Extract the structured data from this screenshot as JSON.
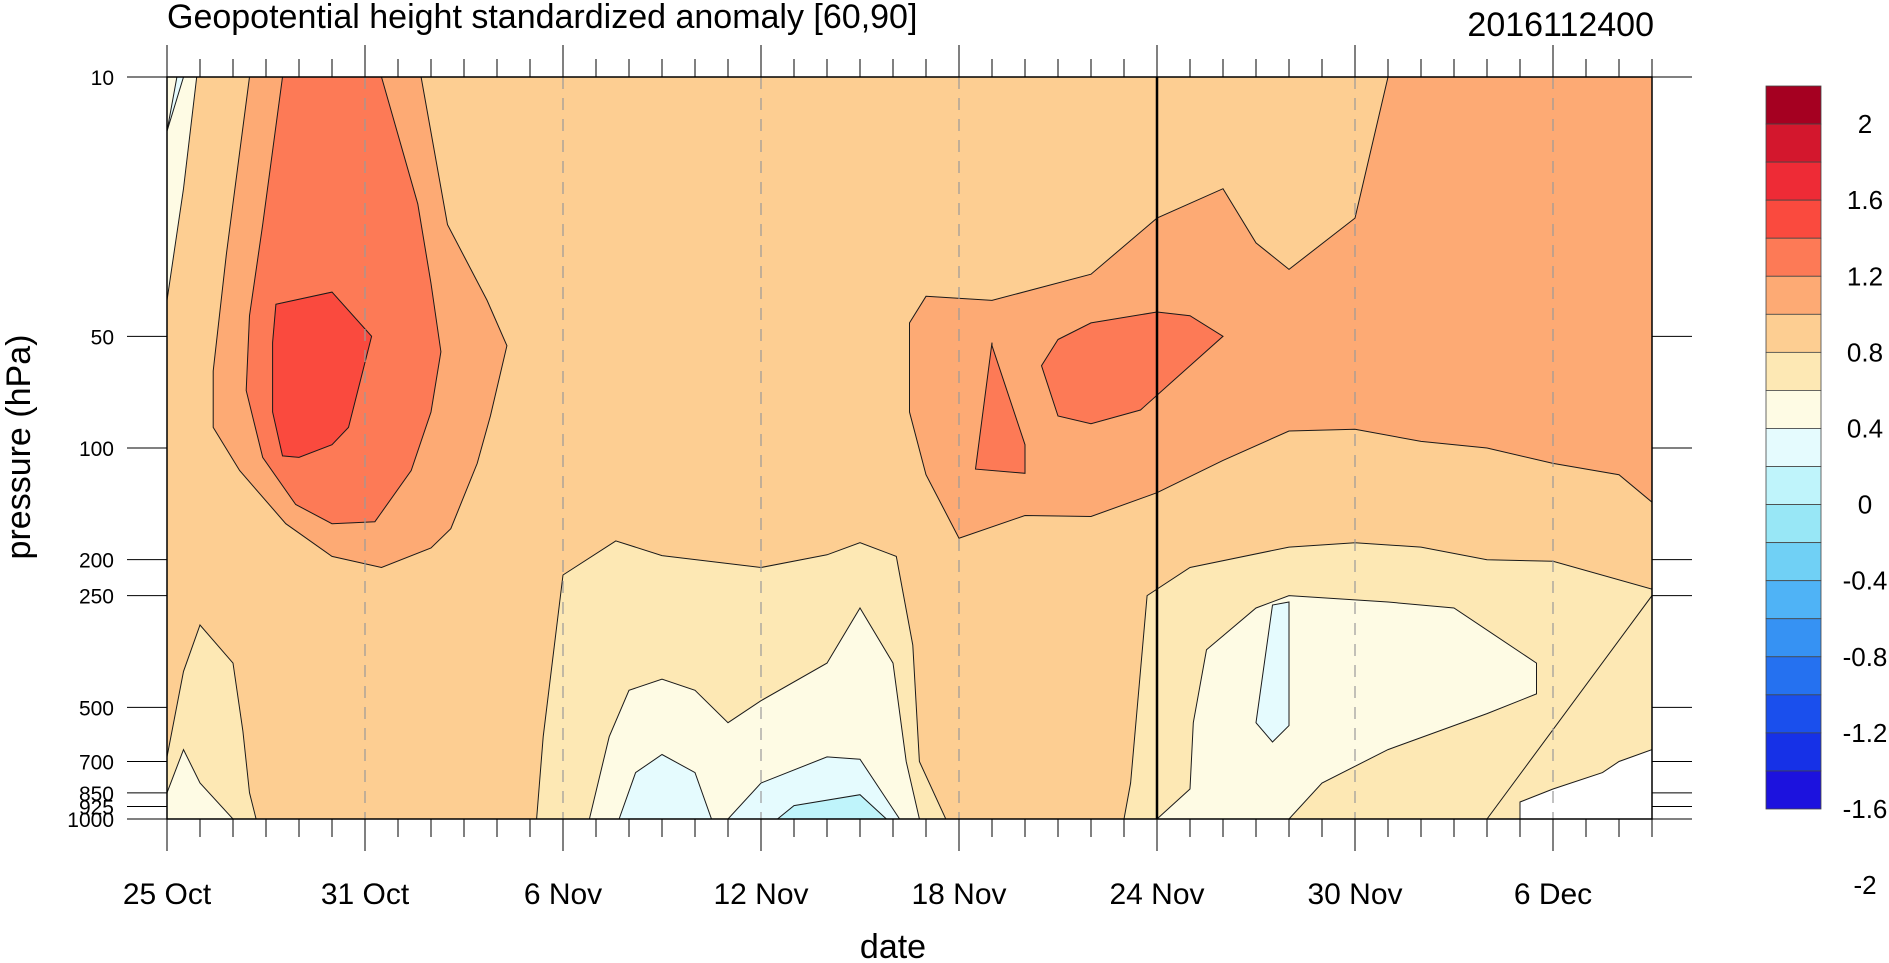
{
  "chart_data": {
    "type": "contour",
    "title": "Geopotential height standardized anomaly [60,90]",
    "date_label": "2016112400",
    "xlabel": "date",
    "ylabel": "pressure (hPa)",
    "x_start": "25 Oct",
    "x_end": "9 Dec",
    "x_ticks": [
      {
        "label": "25 Oct",
        "day": 0
      },
      {
        "label": "31 Oct",
        "day": 6
      },
      {
        "label": "6 Nov",
        "day": 12
      },
      {
        "label": "12 Nov",
        "day": 18
      },
      {
        "label": "18 Nov",
        "day": 24
      },
      {
        "label": "24 Nov",
        "day": 30
      },
      {
        "label": "30 Nov",
        "day": 36
      },
      {
        "label": "6 Dec",
        "day": 42
      }
    ],
    "y_scale": "log",
    "y_reversed": true,
    "ylim": [
      1000,
      10
    ],
    "y_ticks": [
      10,
      50,
      100,
      200,
      250,
      500,
      700,
      850,
      925,
      1000
    ],
    "y_tick_labels": [
      "10",
      "50",
      "100",
      "200",
      "250",
      "500",
      "700",
      "850",
      "925",
      "1000"
    ],
    "current_date_line": "24 Nov",
    "colorbar": {
      "labels": [
        "2",
        "1.6",
        "1.2",
        "0.8",
        "0.4",
        "0",
        "-0.4",
        "-0.8",
        "-1.2",
        "-1.6",
        "-2"
      ],
      "colors": [
        "#a50021",
        "#d3172d",
        "#ee2b36",
        "#fa4a3e",
        "#fd7a56",
        "#fdaa74",
        "#fdce92",
        "#fde8b4",
        "#fefbe4",
        "#e5fbfe",
        "#bff4fb",
        "#98e7f6",
        "#70d0f5",
        "#4fb3f6",
        "#3692f3",
        "#2571f0",
        "#1a4fed",
        "#1631e7",
        "#1c12de"
      ]
    },
    "regions": [
      {
        "level": "0.8",
        "color": "#fdce92",
        "pts": [
          [
            0.9,
            10
          ],
          [
            10,
            10
          ],
          [
            12,
            10
          ],
          [
            29,
            10
          ],
          [
            30,
            10
          ],
          [
            45,
            10
          ],
          [
            45,
            100
          ],
          [
            45,
            250
          ],
          [
            40,
            1000
          ],
          [
            36,
            1000
          ],
          [
            0,
            1000
          ],
          [
            0,
            250
          ],
          [
            0,
            10
          ]
        ]
      },
      {
        "level": "1.2",
        "color": "#fdaa74",
        "pts": [
          [
            2.5,
            10
          ],
          [
            7.7,
            10
          ],
          [
            8.5,
            25
          ],
          [
            9.7,
            40
          ],
          [
            10.3,
            53
          ],
          [
            9.8,
            82
          ],
          [
            9.4,
            110
          ],
          [
            8.6,
            165
          ],
          [
            8,
            186
          ],
          [
            6.5,
            210
          ],
          [
            5,
            196
          ],
          [
            3.6,
            160
          ],
          [
            2.2,
            115
          ],
          [
            1.4,
            88
          ],
          [
            1.4,
            62
          ],
          [
            1.8,
            30
          ],
          [
            2.2,
            16
          ]
        ]
      },
      {
        "level": "1.2",
        "color": "#fdaa74",
        "pts": [
          [
            23,
            39
          ],
          [
            25,
            40
          ],
          [
            28,
            34
          ],
          [
            30,
            24
          ],
          [
            32,
            20
          ],
          [
            33,
            28
          ],
          [
            34,
            33
          ],
          [
            36,
            24
          ],
          [
            37,
            10
          ],
          [
            45,
            10
          ],
          [
            45,
            140
          ],
          [
            44,
            118
          ],
          [
            42,
            110
          ],
          [
            40,
            100
          ],
          [
            38,
            96
          ],
          [
            36,
            89
          ],
          [
            34,
            90
          ],
          [
            32,
            108
          ],
          [
            30,
            132
          ],
          [
            28,
            153
          ],
          [
            26,
            152
          ],
          [
            24,
            175
          ],
          [
            23,
            118
          ],
          [
            22.5,
            80
          ],
          [
            22.5,
            46
          ]
        ]
      },
      {
        "level": "1.6",
        "color": "#fd7a56",
        "pts": [
          [
            3.5,
            10
          ],
          [
            6.5,
            10
          ],
          [
            7.6,
            22
          ],
          [
            8,
            36
          ],
          [
            8.3,
            55
          ],
          [
            8,
            80
          ],
          [
            7.4,
            115
          ],
          [
            6.3,
            158
          ],
          [
            5,
            160
          ],
          [
            3.9,
            142
          ],
          [
            2.9,
            106
          ],
          [
            2.4,
            70
          ],
          [
            2.5,
            44
          ],
          [
            2.9,
            25
          ]
        ]
      },
      {
        "level": "1.6",
        "color": "#fd7a56",
        "pts": [
          [
            25,
            53
          ],
          [
            26,
            98
          ],
          [
            26,
            117
          ],
          [
            24.5,
            114
          ],
          [
            25,
            52
          ]
        ]
      },
      {
        "level": "1.6",
        "color": "#fd7a56",
        "pts": [
          [
            27,
            51
          ],
          [
            28,
            46
          ],
          [
            30,
            43
          ],
          [
            31,
            44
          ],
          [
            32,
            50
          ],
          [
            31,
            60
          ],
          [
            29.5,
            79
          ],
          [
            28,
            86
          ],
          [
            27,
            82
          ],
          [
            26.5,
            60
          ]
        ]
      },
      {
        "level": "2.0",
        "color": "#fa4a3e",
        "pts": [
          [
            3.3,
            41
          ],
          [
            5,
            38
          ],
          [
            6.2,
            50
          ],
          [
            5.5,
            88
          ],
          [
            5,
            98
          ],
          [
            4,
            106
          ],
          [
            3.5,
            105
          ],
          [
            3.2,
            80
          ],
          [
            3.2,
            52
          ]
        ]
      },
      {
        "level": "0.4",
        "color": "#fde8b4",
        "pts": [
          [
            11.2,
            1000
          ],
          [
            11.4,
            600
          ],
          [
            12,
            220
          ],
          [
            13.6,
            178
          ],
          [
            15,
            195
          ],
          [
            18,
            210
          ],
          [
            20,
            194
          ],
          [
            21,
            180
          ],
          [
            22.1,
            196
          ],
          [
            22.6,
            340
          ],
          [
            22.8,
            700
          ],
          [
            23.6,
            1000
          ]
        ]
      },
      {
        "level": "0.4",
        "color": "#fde8b4",
        "pts": [
          [
            29,
            1000
          ],
          [
            29.2,
            800
          ],
          [
            29.7,
            250
          ],
          [
            31,
            210
          ],
          [
            34,
            185
          ],
          [
            36,
            180
          ],
          [
            38,
            185
          ],
          [
            40,
            200
          ],
          [
            42,
            202
          ],
          [
            45,
            240
          ],
          [
            45,
            650
          ],
          [
            44,
            700
          ],
          [
            43.5,
            750
          ],
          [
            42,
            830
          ],
          [
            41,
            900
          ],
          [
            41,
            1000
          ]
        ]
      },
      {
        "level": "0.4",
        "color": "#fde8b4",
        "pts": [
          [
            0,
            1000
          ],
          [
            0,
            680
          ],
          [
            0.5,
            400
          ],
          [
            1,
            300
          ],
          [
            2,
            380
          ],
          [
            2.3,
            580
          ],
          [
            2.5,
            850
          ],
          [
            2.7,
            1000
          ]
        ]
      },
      {
        "level": "0",
        "color": "#fefbe4",
        "pts": [
          [
            12.8,
            1000
          ],
          [
            13.4,
            600
          ],
          [
            14,
            450
          ],
          [
            15,
            420
          ],
          [
            16,
            450
          ],
          [
            17,
            550
          ],
          [
            18,
            480
          ],
          [
            20,
            380
          ],
          [
            21,
            270
          ],
          [
            22,
            380
          ],
          [
            22.4,
            700
          ],
          [
            22.8,
            1000
          ]
        ]
      },
      {
        "level": "0",
        "color": "#fefbe4",
        "pts": [
          [
            30,
            1000
          ],
          [
            31,
            830
          ],
          [
            31.1,
            550
          ],
          [
            31.5,
            350
          ],
          [
            33,
            270
          ],
          [
            34,
            250
          ],
          [
            37,
            260
          ],
          [
            39,
            270
          ],
          [
            41.5,
            380
          ],
          [
            41.5,
            460
          ],
          [
            40,
            520
          ],
          [
            37,
            650
          ],
          [
            35,
            800
          ],
          [
            34,
            1000
          ]
        ]
      },
      {
        "level": "0",
        "color": "#fefbe4",
        "pts": [
          [
            0,
            1000
          ],
          [
            0,
            850
          ],
          [
            0.5,
            650
          ],
          [
            1,
            800
          ],
          [
            2,
            1000
          ]
        ]
      },
      {
        "level": "0",
        "color": "#fefbe4",
        "pts": [
          [
            0,
            10
          ],
          [
            0.6,
            10
          ],
          [
            0.9,
            10
          ],
          [
            0.5,
            20
          ],
          [
            0,
            40
          ]
        ]
      },
      {
        "level": "-0.4",
        "color": "#e5fbfe",
        "pts": [
          [
            13.7,
            1000
          ],
          [
            14.2,
            750
          ],
          [
            15,
            670
          ],
          [
            16,
            750
          ],
          [
            16.5,
            1000
          ]
        ]
      },
      {
        "level": "-0.4",
        "color": "#e5fbfe",
        "pts": [
          [
            17,
            1000
          ],
          [
            18,
            800
          ],
          [
            20,
            680
          ],
          [
            21,
            690
          ],
          [
            22.2,
            1000
          ]
        ]
      },
      {
        "level": "-0.4",
        "color": "#e5fbfe",
        "pts": [
          [
            33,
            550
          ],
          [
            33.5,
            265
          ],
          [
            34,
            260
          ],
          [
            34,
            560
          ],
          [
            33.5,
            620
          ]
        ]
      },
      {
        "level": "-0.4",
        "color": "#e5fbfe",
        "pts": [
          [
            0,
            14
          ],
          [
            0.3,
            10
          ],
          [
            0.5,
            10
          ],
          [
            0,
            14
          ]
        ]
      },
      {
        "level": "-0.8",
        "color": "#bff4fb",
        "pts": [
          [
            18.5,
            1000
          ],
          [
            19,
            920
          ],
          [
            21,
            860
          ],
          [
            21.8,
            1000
          ]
        ]
      }
    ]
  }
}
